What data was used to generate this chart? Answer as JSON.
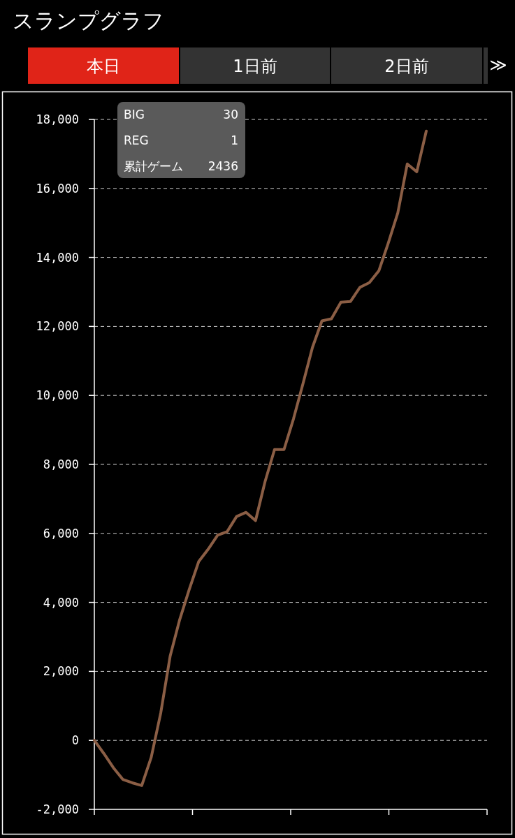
{
  "chart_data": {
    "type": "line",
    "title": "スランプグラフ",
    "categories": [
      null,
      null,
      null,
      null,
      null,
      null,
      null,
      null,
      null,
      null,
      null,
      null,
      null,
      null,
      null,
      null,
      null,
      null,
      null,
      null,
      null,
      null,
      null,
      null,
      null,
      null,
      null,
      null,
      null,
      null,
      null,
      null,
      null,
      null,
      null,
      null
    ],
    "series": [
      {
        "color": "#8b5e45",
        "values": [
          0,
          -380,
          -790,
          -1130,
          -1230,
          -1310,
          -490,
          790,
          2450,
          3500,
          4370,
          5180,
          5540,
          5950,
          6050,
          6490,
          6610,
          6370,
          7500,
          8430,
          8430,
          9320,
          10340,
          11390,
          12160,
          12220,
          12700,
          12720,
          13130,
          13270,
          13610,
          14420,
          15290,
          16710,
          16480,
          17660
        ]
      }
    ],
    "ylim": [
      -2000,
      18000
    ],
    "yticks": [
      {
        "value": -2000,
        "label": "-2,000"
      },
      {
        "value": 0,
        "label": "0"
      },
      {
        "value": 2000,
        "label": "2,000"
      },
      {
        "value": 4000,
        "label": "4,000"
      },
      {
        "value": 6000,
        "label": "6,000"
      },
      {
        "value": 8000,
        "label": "8,000"
      },
      {
        "value": 10000,
        "label": "10,000"
      },
      {
        "value": 12000,
        "label": "12,000"
      },
      {
        "value": 14000,
        "label": "14,000"
      },
      {
        "value": 16000,
        "label": "16,000"
      },
      {
        "value": 18000,
        "label": "18,000"
      }
    ],
    "grid": "y",
    "marker": "none",
    "line_style": "solid",
    "annotations": [
      "本日",
      "1日前",
      "2日前",
      "≫",
      "BIG",
      "30",
      "REG",
      "1",
      "累計ゲーム",
      "2436"
    ]
  }
}
